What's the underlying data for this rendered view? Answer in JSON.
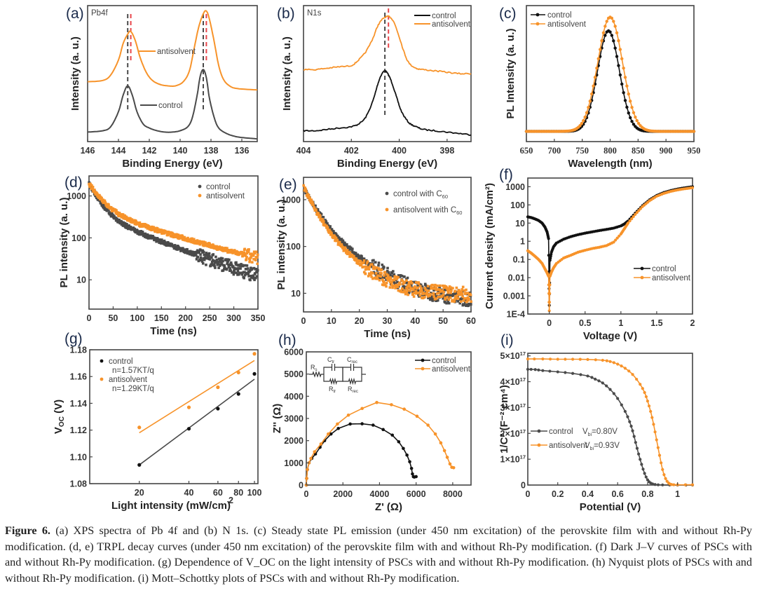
{
  "figure": {
    "caption_label": "Figure 6.",
    "caption_text": " (a) XPS spectra of Pb 4f and (b) N 1s. (c) Steady state PL emission (under 450 nm excitation) of the perovskite film with and without Rh-Py modification. (d, e) TRPL decay curves (under 450 nm excitation) of the perovskite film with and without Rh-Py modification. (f) Dark J–V curves of PSCs with and without Rh-Py modification. (g) Dependence of V_OC on the light intensity of PSCs with and without Rh-Py modification. (h) Nyquist plots of PSCs with and without Rh-Py modification. (i) Mott–Schottky plots of PSCs with and without Rh-Py modification."
  },
  "colors": {
    "control": "#4a4a4a",
    "control_dark": "#111111",
    "antisolvent": "#f7932a",
    "ref_line_red": "#e8464b"
  },
  "chart_data": [
    {
      "id": "a",
      "panel_label": "(a)",
      "type": "line",
      "title": "Pb4f",
      "xlabel": "Binding Energy (eV)",
      "ylabel": "Intensity (a. u.)",
      "xlim": [
        146,
        135
      ],
      "xticks": [
        146,
        144,
        142,
        140,
        138,
        136
      ],
      "ylim": [
        0,
        1.0
      ],
      "series": [
        {
          "name": "control",
          "label_inline": "control",
          "peaks_ev": [
            143.4,
            138.5
          ],
          "x": [
            146,
            145,
            144.5,
            144,
            143.7,
            143.4,
            143.1,
            142.8,
            142.4,
            142,
            141.5,
            141,
            140.5,
            140,
            139.5,
            139.2,
            138.9,
            138.7,
            138.5,
            138.3,
            138.1,
            137.8,
            137.5,
            137,
            136.5,
            136,
            135
          ],
          "y": [
            0.07,
            0.08,
            0.11,
            0.22,
            0.34,
            0.41,
            0.34,
            0.22,
            0.13,
            0.1,
            0.08,
            0.07,
            0.07,
            0.08,
            0.11,
            0.18,
            0.34,
            0.48,
            0.53,
            0.47,
            0.32,
            0.18,
            0.1,
            0.06,
            0.04,
            0.03,
            0.02
          ]
        },
        {
          "name": "antisolvent",
          "label_inline": "antisolvent",
          "peaks_ev": [
            143.2,
            138.3
          ],
          "x": [
            146,
            145,
            144.5,
            144,
            143.7,
            143.4,
            143.2,
            142.9,
            142.6,
            142.2,
            141.8,
            141.3,
            140.8,
            140.3,
            139.8,
            139.4,
            139.1,
            138.8,
            138.5,
            138.3,
            138.1,
            137.8,
            137.5,
            137.2,
            136.8,
            136.3,
            135
          ],
          "y": [
            0.44,
            0.45,
            0.49,
            0.6,
            0.72,
            0.79,
            0.81,
            0.74,
            0.62,
            0.51,
            0.45,
            0.42,
            0.41,
            0.41,
            0.44,
            0.52,
            0.68,
            0.84,
            0.94,
            0.96,
            0.9,
            0.74,
            0.56,
            0.46,
            0.41,
            0.39,
            0.38
          ]
        }
      ],
      "ref_lines": [
        {
          "x": 143.4,
          "color": "control"
        },
        {
          "x": 143.2,
          "color": "red"
        },
        {
          "x": 138.5,
          "color": "control"
        },
        {
          "x": 138.3,
          "color": "red"
        }
      ]
    },
    {
      "id": "b",
      "panel_label": "(b)",
      "type": "line",
      "title": "N1s",
      "xlabel": "Binding Energy (eV)",
      "ylabel": "Intensity (a. u.)",
      "xlim": [
        404,
        397
      ],
      "xticks": [
        404,
        402,
        400,
        398
      ],
      "ylim": [
        0,
        1.0
      ],
      "legend": [
        "control",
        "antisolvent"
      ],
      "legend_position": "top-right",
      "series": [
        {
          "name": "control",
          "peak_ev": 400.6,
          "x": [
            404,
            403.5,
            403,
            402.5,
            402,
            401.7,
            401.4,
            401.1,
            400.9,
            400.75,
            400.6,
            400.45,
            400.3,
            400.1,
            399.9,
            399.6,
            399.3,
            399,
            398.5,
            398,
            397.5,
            397
          ],
          "y": [
            0.08,
            0.08,
            0.09,
            0.1,
            0.11,
            0.13,
            0.18,
            0.3,
            0.42,
            0.49,
            0.52,
            0.49,
            0.43,
            0.32,
            0.22,
            0.14,
            0.11,
            0.09,
            0.08,
            0.07,
            0.06,
            0.05
          ]
        },
        {
          "name": "antisolvent",
          "peak_ev": 400.45,
          "x": [
            404,
            403.5,
            403,
            402.5,
            402,
            401.7,
            401.4,
            401.1,
            400.9,
            400.7,
            400.5,
            400.35,
            400.2,
            400,
            399.8,
            399.6,
            399.3,
            399,
            398.5,
            398,
            397.5,
            397
          ],
          "y": [
            0.53,
            0.53,
            0.54,
            0.55,
            0.56,
            0.6,
            0.66,
            0.76,
            0.85,
            0.9,
            0.92,
            0.91,
            0.87,
            0.77,
            0.66,
            0.58,
            0.54,
            0.53,
            0.52,
            0.51,
            0.5,
            0.5
          ]
        }
      ],
      "ref_lines": [
        {
          "x": 400.6,
          "color": "control"
        },
        {
          "x": 400.45,
          "color": "red"
        }
      ]
    },
    {
      "id": "c",
      "panel_label": "(c)",
      "type": "line",
      "xlabel": "Wavelength (nm)",
      "ylabel": "PL Intensity (a. u.)",
      "xlim": [
        650,
        950
      ],
      "xticks": [
        650,
        700,
        750,
        800,
        850,
        900,
        950
      ],
      "ylim": [
        0,
        1.0
      ],
      "legend": [
        "control",
        "antisolvent"
      ],
      "legend_position": "top-left",
      "series": [
        {
          "name": "control",
          "peak_nm": 797,
          "peak_rel": 0.74,
          "fwhm_nm": 46
        },
        {
          "name": "antisolvent",
          "peak_nm": 800,
          "peak_rel": 0.84,
          "fwhm_nm": 52
        }
      ],
      "baseline_rel": 0.075
    },
    {
      "id": "d",
      "panel_label": "(d)",
      "type": "scatter",
      "xlabel": "Time (ns)",
      "ylabel": "PL intensity (a. u.)",
      "yscale": "log",
      "xlim": [
        0,
        350
      ],
      "xticks": [
        0,
        50,
        100,
        150,
        200,
        250,
        300,
        350
      ],
      "ylim": [
        2,
        3000
      ],
      "yticks": [
        10,
        100,
        1000
      ],
      "yticklabels": [
        "10",
        "100",
        "1000"
      ],
      "legend": [
        "control",
        "antisolvent"
      ],
      "legend_position": "top-right",
      "series": [
        {
          "name": "control",
          "A1": 1600,
          "tau1": 18,
          "A2": 380,
          "tau2": 95,
          "floor": 3
        },
        {
          "name": "antisolvent",
          "A1": 1500,
          "tau1": 22,
          "A2": 450,
          "tau2": 125,
          "floor": 5
        }
      ]
    },
    {
      "id": "e",
      "panel_label": "(e)",
      "type": "scatter",
      "xlabel": "Time (ns)",
      "ylabel": "PL intensity (a. u.)",
      "yscale": "log",
      "xlim": [
        0,
        60
      ],
      "xticks": [
        0,
        10,
        20,
        30,
        40,
        50,
        60
      ],
      "ylim": [
        4,
        3000
      ],
      "yticks": [
        10,
        100,
        1000
      ],
      "yticklabels": [
        "10",
        "100",
        "1000"
      ],
      "legend": [
        "control with C60",
        "antisolvent with C60"
      ],
      "legend_position": "top-right",
      "series": [
        {
          "name": "control with C60",
          "A1": 1400,
          "tau1": 3.5,
          "A2": 400,
          "tau2": 9.5,
          "floor": 7
        },
        {
          "name": "antisolvent with C60",
          "A1": 1500,
          "tau1": 3.2,
          "A2": 350,
          "tau2": 8.5,
          "floor": 9
        }
      ]
    },
    {
      "id": "f",
      "panel_label": "(f)",
      "type": "line",
      "xlabel": "Voltage (V)",
      "ylabel": "Current density (mA/cm²)",
      "yscale": "log",
      "xlim": [
        -0.3,
        2.0
      ],
      "xticks": [
        0.0,
        0.5,
        1.0,
        1.5,
        2.0
      ],
      "ylim": [
        0.0001,
        3000
      ],
      "yticks": [
        0.0001,
        0.001,
        0.01,
        0.1,
        1,
        10,
        100,
        1000
      ],
      "yticklabels": [
        "1E-4",
        "0.001",
        "0.01",
        "0.1",
        "1",
        "10",
        "100",
        "1000"
      ],
      "legend": [
        "control",
        "antisolvent"
      ],
      "legend_position": "center-right",
      "series": [
        {
          "name": "control",
          "x": [
            -0.3,
            -0.25,
            -0.2,
            -0.15,
            -0.1,
            -0.06,
            -0.03,
            -0.01,
            0,
            0.01,
            0.03,
            0.06,
            0.1,
            0.2,
            0.3,
            0.4,
            0.5,
            0.6,
            0.7,
            0.8,
            0.9,
            1.0,
            1.05,
            1.1,
            1.2,
            1.3,
            1.4,
            1.5,
            1.6,
            1.7,
            1.8,
            1.9,
            2.0
          ],
          "y": [
            22,
            20,
            17,
            14,
            10,
            6,
            3.2,
            1.4,
            0.0003,
            0.09,
            0.25,
            0.5,
            0.8,
            1.3,
            1.8,
            2.3,
            2.8,
            3.3,
            3.9,
            4.5,
            5.3,
            7.0,
            9.0,
            13,
            35,
            90,
            190,
            330,
            480,
            620,
            760,
            880,
            1000
          ]
        },
        {
          "name": "antisolvent",
          "x": [
            -0.3,
            -0.25,
            -0.2,
            -0.15,
            -0.1,
            -0.06,
            -0.03,
            -0.01,
            0,
            0.01,
            0.03,
            0.06,
            0.1,
            0.2,
            0.3,
            0.4,
            0.5,
            0.6,
            0.7,
            0.8,
            0.9,
            1.0,
            1.05,
            1.1,
            1.2,
            1.3,
            1.4,
            1.5,
            1.6,
            1.7,
            1.8,
            1.9,
            2.0
          ],
          "y": [
            0.3,
            0.22,
            0.15,
            0.1,
            0.06,
            0.03,
            0.018,
            0.012,
            0.00015,
            0.012,
            0.02,
            0.035,
            0.06,
            0.12,
            0.17,
            0.25,
            0.32,
            0.4,
            0.47,
            0.58,
            0.9,
            2.5,
            5,
            10,
            30,
            80,
            170,
            300,
            430,
            560,
            680,
            780,
            880
          ]
        }
      ]
    },
    {
      "id": "g",
      "panel_label": "(g)",
      "type": "scatter",
      "xlabel": "Light intensity (mW/cm²)",
      "ylabel": "V_OC (V)",
      "xscale": "log",
      "xlim": [
        10,
        105
      ],
      "xticks": [
        20,
        40,
        60,
        80,
        100
      ],
      "ylim": [
        1.08,
        1.18
      ],
      "yticks": [
        1.08,
        1.1,
        1.12,
        1.14,
        1.16,
        1.18
      ],
      "yticklabels": [
        "1.08",
        "1.10",
        "1.12",
        "1.14",
        "1.16",
        "1.18"
      ],
      "legend_position": "top-left",
      "series": [
        {
          "name": "control",
          "annotation": "n=1.57KT/q",
          "x": [
            20,
            40,
            60,
            80,
            100
          ],
          "y": [
            1.094,
            1.121,
            1.136,
            1.147,
            1.162
          ],
          "fit": [
            [
              20,
              1.094
            ],
            [
              100,
              1.158
            ]
          ]
        },
        {
          "name": "antisolvent",
          "annotation": "n=1.29KT/q",
          "x": [
            20,
            40,
            60,
            80,
            100
          ],
          "y": [
            1.122,
            1.137,
            1.152,
            1.163,
            1.177
          ],
          "fit": [
            [
              20,
              1.118
            ],
            [
              100,
              1.172
            ]
          ]
        }
      ]
    },
    {
      "id": "h",
      "panel_label": "(h)",
      "type": "line",
      "xlabel": "Z' (Ω)",
      "ylabel": "Z'' (Ω)",
      "xlim": [
        0,
        9000
      ],
      "xticks": [
        0,
        2000,
        4000,
        6000,
        8000
      ],
      "ylim": [
        0,
        6000
      ],
      "yticks": [
        0,
        1000,
        2000,
        3000,
        4000,
        5000,
        6000
      ],
      "legend": [
        "control",
        "antisolvent"
      ],
      "legend_position": "top-right",
      "inset": {
        "type": "equivalent-circuit",
        "labels": [
          "Rs",
          "Ctr",
          "Rtr",
          "Crec",
          "Rrec"
        ]
      },
      "series": [
        {
          "name": "control",
          "x": [
            0,
            20,
            60,
            150,
            300,
            500,
            750,
            1000,
            1350,
            1750,
            2400,
            3050,
            3650,
            4200,
            4700,
            5050,
            5300,
            5500,
            5650,
            5750,
            5800,
            5850,
            5900,
            6000
          ],
          "y": [
            0,
            300,
            700,
            1000,
            1200,
            1400,
            1700,
            2000,
            2300,
            2550,
            2750,
            2760,
            2700,
            2500,
            2250,
            1950,
            1650,
            1350,
            1050,
            750,
            500,
            380,
            360,
            380
          ]
        },
        {
          "name": "antisolvent",
          "x": [
            0,
            20,
            60,
            150,
            250,
            450,
            800,
            1200,
            1700,
            2300,
            3050,
            3850,
            4650,
            5350,
            6050,
            6650,
            7050,
            7350,
            7550,
            7700,
            7850,
            7950,
            8050
          ],
          "y": [
            0,
            300,
            700,
            1000,
            1200,
            1500,
            1850,
            2300,
            2750,
            3150,
            3450,
            3720,
            3620,
            3420,
            3100,
            2700,
            2300,
            1900,
            1550,
            1250,
            950,
            800,
            780
          ]
        }
      ]
    },
    {
      "id": "i",
      "panel_label": "(i)",
      "type": "line",
      "xlabel": "Potential (V)",
      "ylabel": "1/C² (F⁻² cm⁴)",
      "xlim": [
        0.0,
        1.1
      ],
      "xticks": [
        0.0,
        0.2,
        0.4,
        0.6,
        0.8,
        1.0
      ],
      "ylim": [
        0,
        5.1e+17
      ],
      "yticks": [
        0,
        1e+17,
        2e+17,
        3e+17,
        4e+17,
        5e+17
      ],
      "yticklabels": [
        "0",
        "1×10¹⁷",
        "2×10¹⁷",
        "3×10¹⁷",
        "4×10¹⁷",
        "5×10¹⁷"
      ],
      "legend_position": "center-left",
      "series": [
        {
          "name": "control",
          "vbi_label": "Vbi=0.80V",
          "x": [
            0,
            0.05,
            0.1,
            0.2,
            0.3,
            0.4,
            0.45,
            0.5,
            0.55,
            0.6,
            0.65,
            0.68,
            0.7,
            0.72,
            0.74,
            0.76,
            0.78,
            0.8,
            0.82,
            0.85,
            0.9,
            1.0,
            1.1
          ],
          "y": [
            4.48e+17,
            4.47e+17,
            4.43e+17,
            4.38e+17,
            4.32e+17,
            4.22e+17,
            4.1e+17,
            3.95e+17,
            3.7e+17,
            3.35e+17,
            2.85e+17,
            2.45e+17,
            2.1e+17,
            1.65e+17,
            1.2e+17,
            8e+16,
            4.5e+16,
            2e+16,
            8000000000000000.0,
            2000000000000000.0,
            500000000000000.0,
            0,
            0
          ]
        },
        {
          "name": "antisolvent",
          "vbi_label": "Vbi=0.93V",
          "x": [
            0,
            0.1,
            0.2,
            0.3,
            0.4,
            0.5,
            0.55,
            0.6,
            0.65,
            0.7,
            0.75,
            0.78,
            0.8,
            0.82,
            0.84,
            0.86,
            0.88,
            0.9,
            0.92,
            0.94,
            0.96,
            1.0,
            1.1
          ],
          "y": [
            4.88e+17,
            4.88e+17,
            4.87e+17,
            4.87e+17,
            4.86e+17,
            4.83e+17,
            4.78e+17,
            4.68e+17,
            4.52e+17,
            4.28e+17,
            3.9e+17,
            3.58e+17,
            3.25e+17,
            2.85e+17,
            2.35e+17,
            1.75e+17,
            1.15e+17,
            6e+16,
            2.5e+16,
            8000000000000000.0,
            2000000000000000.0,
            1000000000000000.0,
            1000000000000000.0
          ]
        }
      ]
    }
  ]
}
